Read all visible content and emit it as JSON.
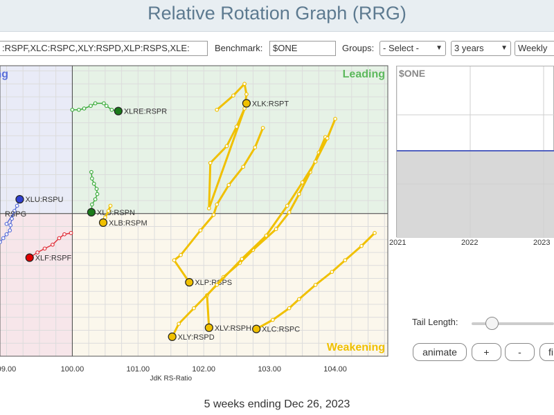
{
  "page": {
    "title": "Relative Rotation Graph (RRG)",
    "footer": "5 weeks ending Dec 26, 2023"
  },
  "controls": {
    "symbols_value": ":RSPF,XLC:RSPC,XLY:RSPD,XLP:RSPS,XLE:",
    "benchmark_label": "Benchmark:",
    "benchmark_value": "$ONE",
    "groups_label": "Groups:",
    "groups_value": "- Select -",
    "period_value": "3 years",
    "frequency_value": "Weekly"
  },
  "side_panel": {
    "symbol": "$ONE",
    "x_ticks": [
      "2021",
      "2022",
      "2023"
    ]
  },
  "tail": {
    "label": "Tail Length:",
    "value_fraction": 0.24
  },
  "buttons": {
    "animate": "animate",
    "plus": "+",
    "minus": "-",
    "extra": "fi"
  },
  "chart_data": {
    "type": "scatter",
    "xlabel": "JdK RS-Ratio",
    "ylabel": "",
    "xlim": [
      98.9,
      104.8
    ],
    "ylim": [
      94.5,
      105.7
    ],
    "x_ticks": [
      99,
      100,
      101,
      102,
      103,
      104
    ],
    "x_tick_labels": [
      "99.00",
      "100.00",
      "101.00",
      "102.00",
      "103.00",
      "104.00"
    ],
    "center": [
      100,
      100
    ],
    "grid": true,
    "quadrants": {
      "leading": "Leading",
      "weakening": "Weakening",
      "lagging": "",
      "improving": "ing"
    },
    "colors": {
      "leading": "#5cb85c",
      "weakening": "#f0c000",
      "lagging": "#e0303a",
      "improving": "#5a6fd8",
      "leading_bg": "#e6f2e6",
      "weakening_bg": "#fbf7ec",
      "lagging_bg": "#f7e6ea",
      "improving_bg": "#e9ebf7"
    },
    "series": [
      {
        "name": "XLRE:RSPR",
        "color": "#3cac3c",
        "head": "#1a7a1a",
        "points": [
          [
            100.0,
            104.0
          ],
          [
            100.1,
            104.0
          ],
          [
            100.18,
            104.05
          ],
          [
            100.28,
            104.15
          ],
          [
            100.35,
            104.25
          ],
          [
            100.48,
            104.25
          ],
          [
            100.52,
            104.15
          ],
          [
            100.6,
            104.0
          ],
          [
            100.7,
            103.95
          ]
        ]
      },
      {
        "name": "XLU:RSPN",
        "color": "#3cac3c",
        "head": "#1a7a1a",
        "points": [
          [
            100.29,
            101.6
          ],
          [
            100.3,
            101.35
          ],
          [
            100.33,
            101.15
          ],
          [
            100.37,
            100.95
          ],
          [
            100.38,
            100.75
          ],
          [
            100.35,
            100.55
          ],
          [
            100.3,
            100.35
          ],
          [
            100.29,
            100.05
          ]
        ]
      },
      {
        "name": "XLK:RSPT",
        "color": "#f0c000",
        "head": "#f0c000",
        "points": [
          [
            102.2,
            104.0
          ],
          [
            102.45,
            104.55
          ],
          [
            102.62,
            105.0
          ],
          [
            102.65,
            104.6
          ],
          [
            102.62,
            104.05
          ],
          [
            102.5,
            103.35
          ],
          [
            102.35,
            102.6
          ],
          [
            102.1,
            101.95
          ],
          [
            102.08,
            100.2
          ],
          [
            102.65,
            104.25
          ]
        ]
      },
      {
        "name": "XLP:RSPS",
        "color": "#f0c000",
        "head": "#f0c000",
        "points": [
          [
            102.9,
            103.3
          ],
          [
            102.78,
            102.55
          ],
          [
            102.6,
            101.8
          ],
          [
            102.38,
            101.1
          ],
          [
            102.2,
            100.35
          ],
          [
            102.15,
            99.95
          ],
          [
            101.95,
            99.35
          ],
          [
            101.65,
            98.4
          ],
          [
            101.55,
            98.2
          ],
          [
            101.78,
            97.35
          ]
        ]
      },
      {
        "name": "XLV:RSPH",
        "color": "#f0c000",
        "head": "#f0c000",
        "points": [
          [
            103.85,
            102.95
          ],
          [
            103.75,
            102.35
          ],
          [
            103.62,
            101.6
          ],
          [
            103.45,
            100.75
          ],
          [
            103.3,
            100.05
          ],
          [
            103.1,
            99.4
          ],
          [
            102.75,
            98.6
          ],
          [
            102.55,
            98.1
          ],
          [
            102.3,
            97.55
          ],
          [
            102.05,
            96.85
          ],
          [
            102.08,
            95.6
          ]
        ]
      },
      {
        "name": "XLY:RSPD",
        "color": "#f0c000",
        "head": "#f0c000",
        "points": [
          [
            104.0,
            103.65
          ],
          [
            103.88,
            102.9
          ],
          [
            103.7,
            102.0
          ],
          [
            103.5,
            101.2
          ],
          [
            103.27,
            100.3
          ],
          [
            102.95,
            99.15
          ],
          [
            102.58,
            98.25
          ],
          [
            102.2,
            97.25
          ],
          [
            101.85,
            96.35
          ],
          [
            101.62,
            95.75
          ],
          [
            101.52,
            95.25
          ]
        ]
      },
      {
        "name": "XLC:RSPC",
        "color": "#f0c000",
        "head": "#f0c000",
        "points": [
          [
            104.6,
            99.25
          ],
          [
            104.4,
            98.75
          ],
          [
            104.15,
            98.2
          ],
          [
            103.95,
            97.75
          ],
          [
            103.7,
            97.25
          ],
          [
            103.45,
            96.7
          ],
          [
            103.3,
            96.35
          ],
          [
            103.05,
            95.9
          ],
          [
            102.8,
            95.55
          ]
        ]
      },
      {
        "name": "XLB:RSPM",
        "color": "#f0c000",
        "head": "#f0c000",
        "points": [
          [
            100.58,
            100.3
          ],
          [
            100.55,
            100.1
          ],
          [
            100.5,
            99.85
          ],
          [
            100.47,
            99.65
          ]
        ]
      },
      {
        "name": "XLF:RSPF",
        "color": "#e0303a",
        "head": "#e00000",
        "points": [
          [
            99.98,
            99.25
          ],
          [
            99.88,
            99.2
          ],
          [
            99.8,
            99.05
          ],
          [
            99.7,
            98.8
          ],
          [
            99.58,
            98.65
          ],
          [
            99.47,
            98.5
          ],
          [
            99.35,
            98.3
          ]
        ]
      },
      {
        "name": "XLU:RSPU",
        "color": "#5a6fd8",
        "head": "#3040d0",
        "points": [
          [
            98.9,
            98.9
          ],
          [
            98.95,
            99.05
          ],
          [
            99.0,
            99.2
          ],
          [
            99.05,
            99.35
          ],
          [
            99.06,
            99.55
          ],
          [
            99.08,
            99.8
          ],
          [
            99.12,
            100.1
          ],
          [
            99.16,
            100.3
          ],
          [
            99.2,
            100.55
          ]
        ]
      },
      {
        "name": "RSPG",
        "color": "#5a6fd8",
        "head": "#3040d0",
        "points": [
          [
            99.0,
            99.6
          ],
          [
            99.1,
            100.0
          ]
        ],
        "partial": true
      }
    ]
  }
}
